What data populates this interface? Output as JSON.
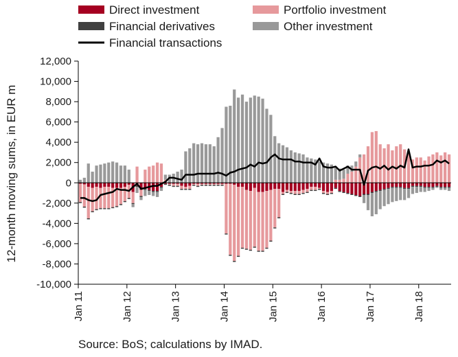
{
  "source_note": "Source: BoS; calculations by IMAD.",
  "chart_data": {
    "type": "bar",
    "stacked": true,
    "ylabel": "12-month moving sums, in EUR m",
    "ylim": [
      -10000,
      12000
    ],
    "ytick_values": [
      12000,
      10000,
      8000,
      6000,
      4000,
      2000,
      0,
      -2000,
      -4000,
      -6000,
      -8000,
      -10000
    ],
    "ytick_labels": [
      "12,000",
      "10,000",
      "8,000",
      "6,000",
      "4,000",
      "2,000",
      "0",
      "-2,000",
      "-4,000",
      "-6,000",
      "-8,000",
      "-10,000"
    ],
    "x_tick_labels": [
      "Jan 11",
      "Jan 12",
      "Jan 13",
      "Jan 14",
      "Jan 15",
      "Jan 16",
      "Jan 17",
      "Jan 18"
    ],
    "x_tick_months": [
      0,
      12,
      24,
      36,
      48,
      60,
      72,
      84
    ],
    "x": [
      "2011-01",
      "2011-02",
      "2011-03",
      "2011-04",
      "2011-05",
      "2011-06",
      "2011-07",
      "2011-08",
      "2011-09",
      "2011-10",
      "2011-11",
      "2011-12",
      "2012-01",
      "2012-02",
      "2012-03",
      "2012-04",
      "2012-05",
      "2012-06",
      "2012-07",
      "2012-08",
      "2012-09",
      "2012-10",
      "2012-11",
      "2012-12",
      "2013-01",
      "2013-02",
      "2013-03",
      "2013-04",
      "2013-05",
      "2013-06",
      "2013-07",
      "2013-08",
      "2013-09",
      "2013-10",
      "2013-11",
      "2013-12",
      "2014-01",
      "2014-02",
      "2014-03",
      "2014-04",
      "2014-05",
      "2014-06",
      "2014-07",
      "2014-08",
      "2014-09",
      "2014-10",
      "2014-11",
      "2014-12",
      "2015-01",
      "2015-02",
      "2015-03",
      "2015-04",
      "2015-05",
      "2015-06",
      "2015-07",
      "2015-08",
      "2015-09",
      "2015-10",
      "2015-11",
      "2015-12",
      "2016-01",
      "2016-02",
      "2016-03",
      "2016-04",
      "2016-05",
      "2016-06",
      "2016-07",
      "2016-08",
      "2016-09",
      "2016-10",
      "2016-11",
      "2016-12",
      "2017-01",
      "2017-02",
      "2017-03",
      "2017-04",
      "2017-05",
      "2017-06",
      "2017-07",
      "2017-08",
      "2017-09",
      "2017-10",
      "2017-11",
      "2017-12",
      "2018-01",
      "2018-02",
      "2018-03",
      "2018-04",
      "2018-05",
      "2018-06",
      "2018-07",
      "2018-08"
    ],
    "series": [
      {
        "name": "Direct investment",
        "kind": "bar",
        "color": "#a50021",
        "values": [
          -100,
          -150,
          -400,
          -500,
          -400,
          -500,
          -400,
          -400,
          -500,
          -500,
          -500,
          -400,
          -200,
          -900,
          -300,
          -700,
          -600,
          -700,
          -800,
          -800,
          -400,
          -100,
          -100,
          -100,
          -100,
          -300,
          -400,
          -300,
          -100,
          -100,
          -100,
          -100,
          -100,
          -100,
          -100,
          -100,
          -100,
          -100,
          -200,
          -400,
          -400,
          -700,
          -800,
          -500,
          -900,
          -900,
          -800,
          -700,
          -600,
          -600,
          -900,
          -700,
          -800,
          -800,
          -800,
          -700,
          -600,
          -400,
          -400,
          -500,
          -800,
          -900,
          -800,
          -500,
          -800,
          -900,
          -1000,
          -1100,
          -1200,
          -1300,
          -1100,
          -1100,
          -900,
          -800,
          -700,
          -600,
          -500,
          -400,
          -400,
          -400,
          -500,
          -500,
          -300,
          -300,
          -300,
          -400,
          -400,
          -400,
          -300,
          -400,
          -400,
          -400
        ]
      },
      {
        "name": "Portfolio investment",
        "kind": "bar",
        "color": "#e6999c",
        "values": [
          -1800,
          -2200,
          -3100,
          -2300,
          -2200,
          -2000,
          -2100,
          -2100,
          -1900,
          -1800,
          -1600,
          -1400,
          -1300,
          -1100,
          1600,
          -600,
          1300,
          1600,
          1700,
          2000,
          1900,
          300,
          -100,
          -200,
          -200,
          -300,
          -200,
          -300,
          -100,
          -200,
          -100,
          -100,
          -100,
          -100,
          -100,
          -100,
          -4900,
          -7000,
          -7500,
          -6800,
          -6000,
          -5800,
          -5800,
          -5800,
          -5800,
          -5800,
          -5600,
          -5000,
          -3800,
          -2800,
          -200,
          -200,
          -200,
          -300,
          -300,
          -300,
          -300,
          -300,
          -300,
          -100,
          -200,
          -200,
          -200,
          300,
          300,
          400,
          900,
          1100,
          1600,
          2500,
          2800,
          3600,
          5000,
          5100,
          3800,
          3400,
          3800,
          3200,
          3600,
          3800,
          3300,
          2900,
          2300,
          2500,
          2500,
          2200,
          2600,
          2800,
          3000,
          2700,
          3000,
          2800
        ]
      },
      {
        "name": "Financial derivatives",
        "kind": "bar",
        "color": "#404040",
        "values": [
          -100,
          -100,
          -100,
          -100,
          -100,
          -100,
          -100,
          -100,
          -100,
          -100,
          -100,
          -100,
          -100,
          -100,
          -100,
          -100,
          -100,
          -100,
          -100,
          -100,
          -100,
          -100,
          -100,
          -100,
          -100,
          -100,
          -100,
          -100,
          -100,
          -100,
          -100,
          -100,
          -100,
          -100,
          -100,
          -100,
          -100,
          -100,
          -100,
          -100,
          -100,
          -100,
          -100,
          -100,
          -100,
          -100,
          -100,
          -100,
          -100,
          -100,
          -100,
          -100,
          -100,
          -100,
          -100,
          -100,
          -100,
          -100,
          -100,
          -100,
          -100,
          -100,
          -100,
          -100,
          -100,
          -100,
          -100,
          -100,
          -100,
          -100,
          -100,
          -100,
          -100,
          -100,
          -100,
          -100,
          -100,
          -100,
          -100,
          -100,
          -100,
          -100,
          -100,
          -100,
          -100,
          -100,
          -100,
          -100,
          -100,
          -100,
          -100,
          -100
        ]
      },
      {
        "name": "Other investment",
        "kind": "bar",
        "color": "#999999",
        "values": [
          300,
          500,
          1900,
          1100,
          1700,
          1800,
          1900,
          2000,
          2100,
          2000,
          1700,
          1700,
          1300,
          -300,
          -600,
          -300,
          -600,
          -400,
          -400,
          -500,
          -300,
          500,
          800,
          900,
          1100,
          1300,
          3100,
          3400,
          3900,
          3800,
          3900,
          3800,
          3800,
          3600,
          4500,
          5400,
          7500,
          7600,
          9200,
          8400,
          8700,
          8000,
          8400,
          8600,
          8500,
          8300,
          7300,
          6700,
          4600,
          3900,
          3700,
          3500,
          3200,
          3000,
          2900,
          2800,
          2500,
          2400,
          2300,
          2100,
          2000,
          1900,
          1800,
          1300,
          1100,
          900,
          800,
          600,
          500,
          300,
          -800,
          -1500,
          -2300,
          -2200,
          -1800,
          -1600,
          -1500,
          -1400,
          -1300,
          -1200,
          -1100,
          -900,
          -700,
          -600,
          -500,
          -400,
          -300,
          -200,
          -100,
          -200,
          -200,
          -300
        ]
      },
      {
        "name": "Financial transactions",
        "kind": "line",
        "color": "#000000",
        "values": [
          -1500,
          -1500,
          -1700,
          -1800,
          -1700,
          -1200,
          -1100,
          -1000,
          -900,
          -600,
          -700,
          -700,
          -800,
          -400,
          -100,
          -600,
          -500,
          -400,
          -300,
          -300,
          -100,
          100,
          500,
          500,
          400,
          300,
          800,
          800,
          800,
          900,
          900,
          900,
          900,
          900,
          1000,
          900,
          700,
          1000,
          1100,
          1300,
          1400,
          1500,
          1800,
          1600,
          2000,
          1900,
          2000,
          2500,
          2800,
          2400,
          2300,
          2300,
          2300,
          2100,
          2100,
          2000,
          2000,
          2000,
          1800,
          2400,
          1600,
          1500,
          1500,
          1600,
          1200,
          1400,
          1600,
          1300,
          1300,
          1300,
          -200,
          1200,
          1500,
          1600,
          1400,
          1700,
          1300,
          1600,
          1400,
          1700,
          1500,
          3300,
          1500,
          1600,
          1600,
          1700,
          1700,
          1800,
          2200,
          2000,
          2200,
          1900
        ]
      }
    ],
    "legend": {
      "position": "top",
      "columns": 2,
      "entries": [
        "Direct investment",
        "Portfolio investment",
        "Financial derivatives",
        "Other investment",
        "Financial transactions"
      ]
    },
    "grid": false
  }
}
